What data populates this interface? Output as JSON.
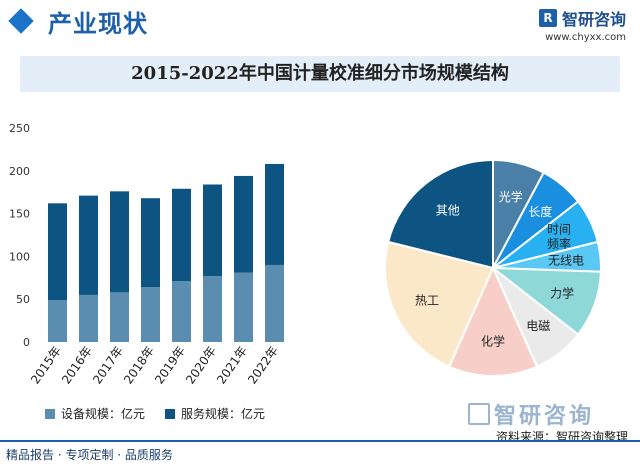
{
  "header": {
    "section_title": "产业现状",
    "logo_name": "智研咨询",
    "logo_url": "www.chyxx.com"
  },
  "title": "2015-2022年中国计量校准细分市场规模结构",
  "legend": {
    "equipment": "设备规模：亿元",
    "service": "服务规模：亿元"
  },
  "source": "资料来源：智研咨询整理",
  "footer": "精品报告 · 专项定制 · 品质服务",
  "watermark": "智研咨询",
  "colors": {
    "equipment": "#5b8db0",
    "service": "#0e5482",
    "brand": "#1d5fa8"
  },
  "chart_data": [
    {
      "type": "bar",
      "stacked": true,
      "categories": [
        "2015年",
        "2016年",
        "2017年",
        "2018年",
        "2019年",
        "2020年",
        "2021年",
        "2022年"
      ],
      "series": [
        {
          "name": "设备规模：亿元",
          "values": [
            49,
            55,
            58,
            64,
            71,
            77,
            81,
            90
          ]
        },
        {
          "name": "服务规模：亿元",
          "values": [
            113,
            116,
            118,
            104,
            108,
            107,
            113,
            118
          ]
        }
      ],
      "yticks": [
        0,
        50,
        100,
        150,
        200,
        250
      ],
      "ylim": [
        0,
        250
      ]
    },
    {
      "type": "pie",
      "labels": [
        "光学",
        "长度",
        "时间频率",
        "无线电",
        "力学",
        "电磁",
        "化学",
        "热工",
        "其他"
      ],
      "values": [
        7,
        6,
        6,
        4,
        9,
        7,
        12,
        20,
        19
      ],
      "colors": [
        "#4a7fa8",
        "#1a8fe0",
        "#28b0f0",
        "#5ac8f5",
        "#8fd8d8",
        "#eaeaea",
        "#f7cfc8",
        "#fbe8c8",
        "#0e5482"
      ]
    }
  ]
}
